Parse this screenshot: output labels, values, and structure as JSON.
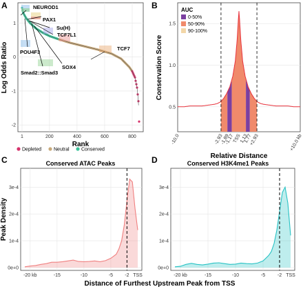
{
  "panels": {
    "A": {
      "letter": "A",
      "title": "",
      "xlabel": "Rank",
      "ylabel": "Log Odds Ratio",
      "x_ticks": [
        "1",
        "200",
        "400",
        "600",
        "800"
      ],
      "y_ticks": [
        "1",
        "0",
        "-1",
        "-2"
      ],
      "legend": [
        "Depleted",
        "Neutral",
        "Conserved"
      ],
      "annotations": [
        "NEUROD1",
        "PAX1",
        "Su(H)",
        "TCF7L1",
        "POU4F3",
        "SOX4",
        "Smad2::Smad3",
        "TCF7"
      ],
      "colors": {
        "depleted": "#d6336c",
        "neutral": "#c8a97a",
        "conserved": "#3cc39a",
        "line": "#555555"
      }
    },
    "B": {
      "letter": "B",
      "xlabel": "Relative Distance",
      "ylabel": "Conservation Score",
      "y_ticks": [
        "0.5",
        "1.0",
        "1.5"
      ],
      "x_ticks": [
        "-10.0",
        "-2.93",
        "-1.89",
        "-1.17",
        "TSS",
        "1.13",
        "1.77",
        "+2.93",
        "+10.0 kb"
      ],
      "legend_title": "AUC",
      "legend": [
        "0-50%",
        "50-90%",
        "90-100%"
      ],
      "colors": {
        "c0_50": "#7b3fa0",
        "c50_90": "#f08a6b",
        "c90_100": "#f3d7a8",
        "line": "#e8323c"
      }
    },
    "C": {
      "letter": "C",
      "title": "Conserved ATAC Peaks",
      "ylabel": "Peak Density",
      "y_ticks": [
        "0e+0",
        "1e-4",
        "2e-4",
        "3e-4"
      ],
      "x_ticks": [
        "-20 kb",
        "-15",
        "-10",
        "-5",
        "-2",
        "TSS"
      ],
      "color": "#f08080"
    },
    "D": {
      "letter": "D",
      "title": "Conserved H3K4me1 Peaks",
      "y_ticks": [
        "0e+0",
        "1e-4",
        "2e-4",
        "3e-4"
      ],
      "x_ticks": [
        "-20 kb",
        "-15",
        "-10",
        "-5",
        "-2",
        "TSS"
      ],
      "color": "#27c2c4"
    },
    "shared_xlabel": "Distance of Furthest Upstream Peak from TSS"
  },
  "chart_data": [
    {
      "type": "scatter",
      "panel": "A",
      "xlabel": "Rank",
      "ylabel": "Log Odds Ratio",
      "xlim": [
        1,
        850
      ],
      "ylim": [
        -2.2,
        1.6
      ],
      "groups": [
        {
          "name": "Conserved",
          "x_range": [
            1,
            270
          ]
        },
        {
          "name": "Neutral",
          "x_range": [
            270,
            800
          ]
        },
        {
          "name": "Depleted",
          "x_range": [
            800,
            850
          ]
        }
      ],
      "curve": {
        "x": [
          1,
          10,
          30,
          60,
          100,
          150,
          200,
          270,
          350,
          450,
          550,
          650,
          720,
          780,
          800,
          820,
          835,
          845,
          850
        ],
        "y": [
          1.45,
          1.3,
          1.15,
          1.0,
          0.85,
          0.72,
          0.62,
          0.52,
          0.42,
          0.32,
          0.22,
          0.1,
          -0.05,
          -0.3,
          -0.42,
          -0.6,
          -0.9,
          -1.3,
          -1.9
        ]
      }
    },
    {
      "type": "area",
      "panel": "B",
      "xlabel": "Relative Distance",
      "ylabel": "Conservation Score",
      "xlim": [
        -10,
        10
      ],
      "ylim": [
        0.2,
        1.75
      ],
      "x": [
        -10,
        -9,
        -8,
        -7,
        -6,
        -5,
        -4,
        -3.5,
        -3,
        -2.5,
        -2,
        -1.5,
        -1,
        -0.6,
        -0.3,
        -0.1,
        0,
        0.1,
        0.3,
        0.6,
        1,
        1.5,
        2,
        2.5,
        3,
        3.5,
        4,
        5,
        6,
        7,
        8,
        9,
        10
      ],
      "y": [
        0.5,
        0.5,
        0.51,
        0.51,
        0.51,
        0.52,
        0.53,
        0.54,
        0.56,
        0.6,
        0.66,
        0.74,
        0.87,
        1.05,
        1.3,
        1.55,
        1.65,
        1.55,
        1.3,
        1.05,
        0.87,
        0.74,
        0.66,
        0.6,
        0.56,
        0.54,
        0.53,
        0.52,
        0.51,
        0.51,
        0.51,
        0.5,
        0.5
      ],
      "bands": [
        {
          "name": "50-90%",
          "from": -2.93,
          "to": -1.89
        },
        {
          "name": "0-50%",
          "from": -1.89,
          "to": -1.17
        },
        {
          "name": "50-90%",
          "from": -1.17,
          "to": 1.13
        },
        {
          "name": "0-50%",
          "from": 1.13,
          "to": 1.77
        },
        {
          "name": "50-90%",
          "from": 1.77,
          "to": 2.93
        }
      ],
      "dashed_x": [
        -2.93,
        2.93
      ]
    },
    {
      "type": "area",
      "panel": "C",
      "title": "Conserved ATAC Peaks",
      "ylabel": "Peak Density",
      "xlim": [
        -21,
        0
      ],
      "ylim": [
        0,
        0.00036
      ],
      "x": [
        -21,
        -20,
        -19,
        -18,
        -17,
        -16,
        -15,
        -14,
        -13,
        -12,
        -11,
        -10,
        -9,
        -8,
        -7,
        -6,
        -5,
        -4,
        -3.5,
        -3,
        -2.5,
        -2,
        -1.5,
        -1,
        -0.5,
        0
      ],
      "y": [
        3e-06,
        6e-06,
        8e-06,
        1.2e-05,
        1.5e-05,
        2e-05,
        2e-05,
        2.2e-05,
        2.5e-05,
        2.8e-05,
        2.3e-05,
        2.2e-05,
        2.3e-05,
        2.5e-05,
        2.2e-05,
        2.6e-05,
        3.5e-05,
        5e-05,
        7e-05,
        0.0001,
        0.00016,
        0.00025,
        0.00033,
        0.00032,
        0.00022,
        0.00014
      ],
      "dashed_x": -2
    },
    {
      "type": "area",
      "panel": "D",
      "title": "Conserved H3K4me1 Peaks",
      "xlim": [
        -21,
        0
      ],
      "ylim": [
        0,
        0.00036
      ],
      "x": [
        -21,
        -20,
        -19,
        -18,
        -17,
        -16,
        -15,
        -14,
        -13,
        -12,
        -11,
        -10,
        -9,
        -8,
        -7,
        -6,
        -5,
        -4,
        -3.5,
        -3,
        -2.5,
        -2,
        -1.5,
        -1,
        -0.5,
        0
      ],
      "y": [
        3e-06,
        5e-06,
        1.2e-05,
        1.6e-05,
        1.2e-05,
        1e-05,
        1.3e-05,
        1.7e-05,
        1.8e-05,
        1.5e-05,
        1.2e-05,
        1.3e-05,
        1.7e-05,
        1.5e-05,
        1.4e-05,
        1.7e-05,
        2.5e-05,
        4.5e-05,
        6e-05,
        9e-05,
        0.00014,
        0.00021,
        0.00028,
        0.0003,
        0.00024,
        0.00012
      ],
      "dashed_x": -2
    }
  ]
}
